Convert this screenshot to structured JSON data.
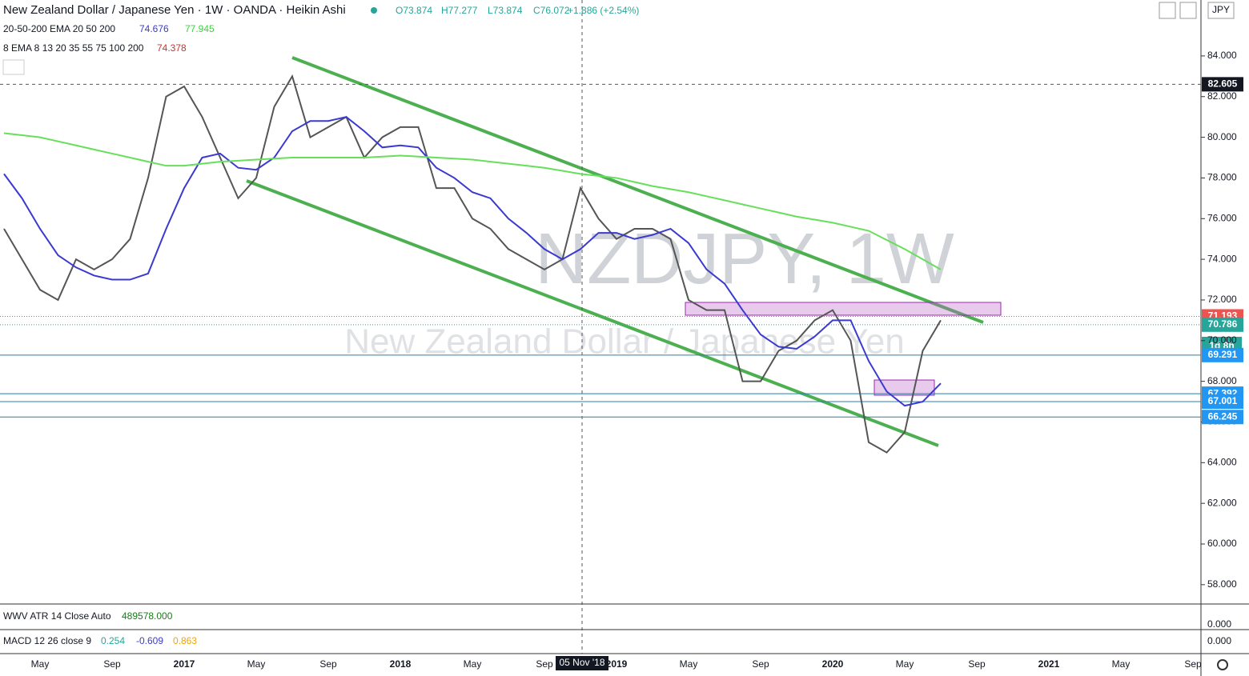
{
  "header": {
    "title": "New Zealand Dollar / Japanese Yen · 1W · OANDA · Heikin Ashi",
    "open": "O73.874",
    "high": "H77.277",
    "low": "L73.874",
    "close": "C76.072",
    "change": "+1.886 (+2.54%)",
    "currency": "JPY"
  },
  "indicators": [
    {
      "name": "20-50-200 EMA 20 50 200",
      "values": [
        "74.676",
        "77.945"
      ]
    },
    {
      "name": "8 EMA 8 13 20 35 55 75 100 200",
      "values": [
        "74.378"
      ]
    }
  ],
  "watermark": {
    "symbol": "NZDJPY, 1W",
    "description": "New Zealand Dollar / Japanese Yen"
  },
  "atr_pane": {
    "name": "WWV ATR 14 Close Auto",
    "value": "489578.000",
    "axis_label": "0.000"
  },
  "macd_pane": {
    "name": "MACD 12 26 close 9",
    "values": [
      "0.254",
      "-0.609",
      "0.863"
    ],
    "axis_label": "0.000"
  },
  "crosshair": {
    "date": "05 Nov '18",
    "timer": "1d 8h"
  },
  "chart_data": {
    "type": "line",
    "categories": [
      null,
      null,
      "May",
      null,
      null,
      null,
      "Sep",
      null,
      null,
      null,
      "2017",
      null,
      null,
      null,
      "May",
      null,
      null,
      null,
      "Sep",
      null,
      null,
      null,
      "2018",
      null,
      null,
      null,
      "May",
      null,
      null,
      null,
      "Sep",
      null,
      null,
      null,
      "2019",
      null,
      null,
      null,
      "May",
      null,
      null,
      null,
      "Sep",
      null,
      null,
      null,
      "2020",
      null,
      null,
      null,
      "May",
      null,
      null,
      null,
      "Sep",
      null,
      null,
      null,
      "2021",
      null,
      null,
      null,
      "May",
      null,
      null,
      null,
      "Sep"
    ],
    "series": [
      {
        "name": "NZDJPY",
        "color": "#555555",
        "values": [
          75.5,
          74,
          72.5,
          72,
          74,
          73.5,
          74,
          75,
          78,
          82,
          82.5,
          81,
          79,
          77,
          78,
          81.5,
          83,
          80,
          80.5,
          81,
          79,
          80,
          80.5,
          80.5,
          77.5,
          77.5,
          76,
          75.5,
          74.5,
          74,
          73.5,
          74,
          77.5,
          76,
          75,
          75.5,
          75.5,
          75,
          72,
          71.5,
          71.5,
          68,
          68,
          69.5,
          70,
          71,
          71.5,
          70,
          65,
          64.5,
          65.5,
          69.5,
          71,
          null,
          null,
          null,
          null,
          null,
          null,
          null,
          null,
          null,
          null,
          null,
          null,
          null,
          null
        ]
      },
      {
        "name": "EMA 20",
        "color": "#3a3ad0",
        "values": [
          78.2,
          77,
          75.5,
          74.2,
          73.6,
          73.2,
          73,
          73,
          73.3,
          75.5,
          77.5,
          79,
          79.2,
          78.5,
          78.4,
          79,
          80.3,
          80.8,
          80.8,
          81,
          80.3,
          79.5,
          79.6,
          79.5,
          78.5,
          78,
          77.3,
          77,
          76,
          75.3,
          74.5,
          74,
          74.5,
          75.3,
          75.3,
          75,
          75.2,
          75.5,
          74.8,
          73.5,
          72.8,
          71.5,
          70.3,
          69.7,
          69.6,
          70.2,
          71,
          71,
          69,
          67.5,
          66.8,
          67,
          67.9,
          null,
          null,
          null,
          null,
          null,
          null,
          null,
          null,
          null,
          null,
          null,
          null,
          null,
          null
        ]
      },
      {
        "name": "EMA 200",
        "color": "#66e05a",
        "values": [
          80.2,
          80.1,
          80,
          79.8,
          79.6,
          79.4,
          79.2,
          79,
          78.8,
          78.6,
          78.6,
          78.7,
          78.8,
          78.85,
          78.9,
          78.95,
          79,
          79,
          79,
          79,
          79,
          79.05,
          79.1,
          79.05,
          79,
          78.95,
          78.9,
          78.8,
          78.7,
          78.6,
          78.5,
          78.35,
          78.2,
          78.1,
          78,
          77.8,
          77.6,
          77.45,
          77.3,
          77.1,
          76.9,
          76.7,
          76.5,
          76.3,
          76.1,
          75.95,
          75.8,
          75.6,
          75.4,
          74.95,
          74.5,
          74,
          73.5,
          null,
          null,
          null,
          null,
          null,
          null,
          null,
          null,
          null,
          null,
          null,
          null,
          null,
          null
        ]
      }
    ],
    "ylim": [
      57.05,
      86.75
    ],
    "yticks": [
      {
        "value": 58,
        "label": "58.000"
      },
      {
        "value": 60,
        "label": "60.000"
      },
      {
        "value": 62,
        "label": "62.000"
      },
      {
        "value": 64,
        "label": "64.000"
      },
      {
        "value": 66,
        "label": "66.000"
      },
      {
        "value": 68,
        "label": "68.000"
      },
      {
        "value": 70,
        "label": "70.000"
      },
      {
        "value": 72,
        "label": "72.000"
      },
      {
        "value": 74,
        "label": "74.000"
      },
      {
        "value": 76,
        "label": "76.000"
      },
      {
        "value": 78,
        "label": "78.000"
      },
      {
        "value": 80,
        "label": "80.000"
      },
      {
        "value": 82,
        "label": "82.000"
      },
      {
        "value": 84,
        "label": "84.000"
      }
    ],
    "support_lines": [
      69.291,
      67.392,
      67.001,
      66.245
    ],
    "crosshair_price": 82.605,
    "last_price": 70.786,
    "prev_close": 71.193
  }
}
